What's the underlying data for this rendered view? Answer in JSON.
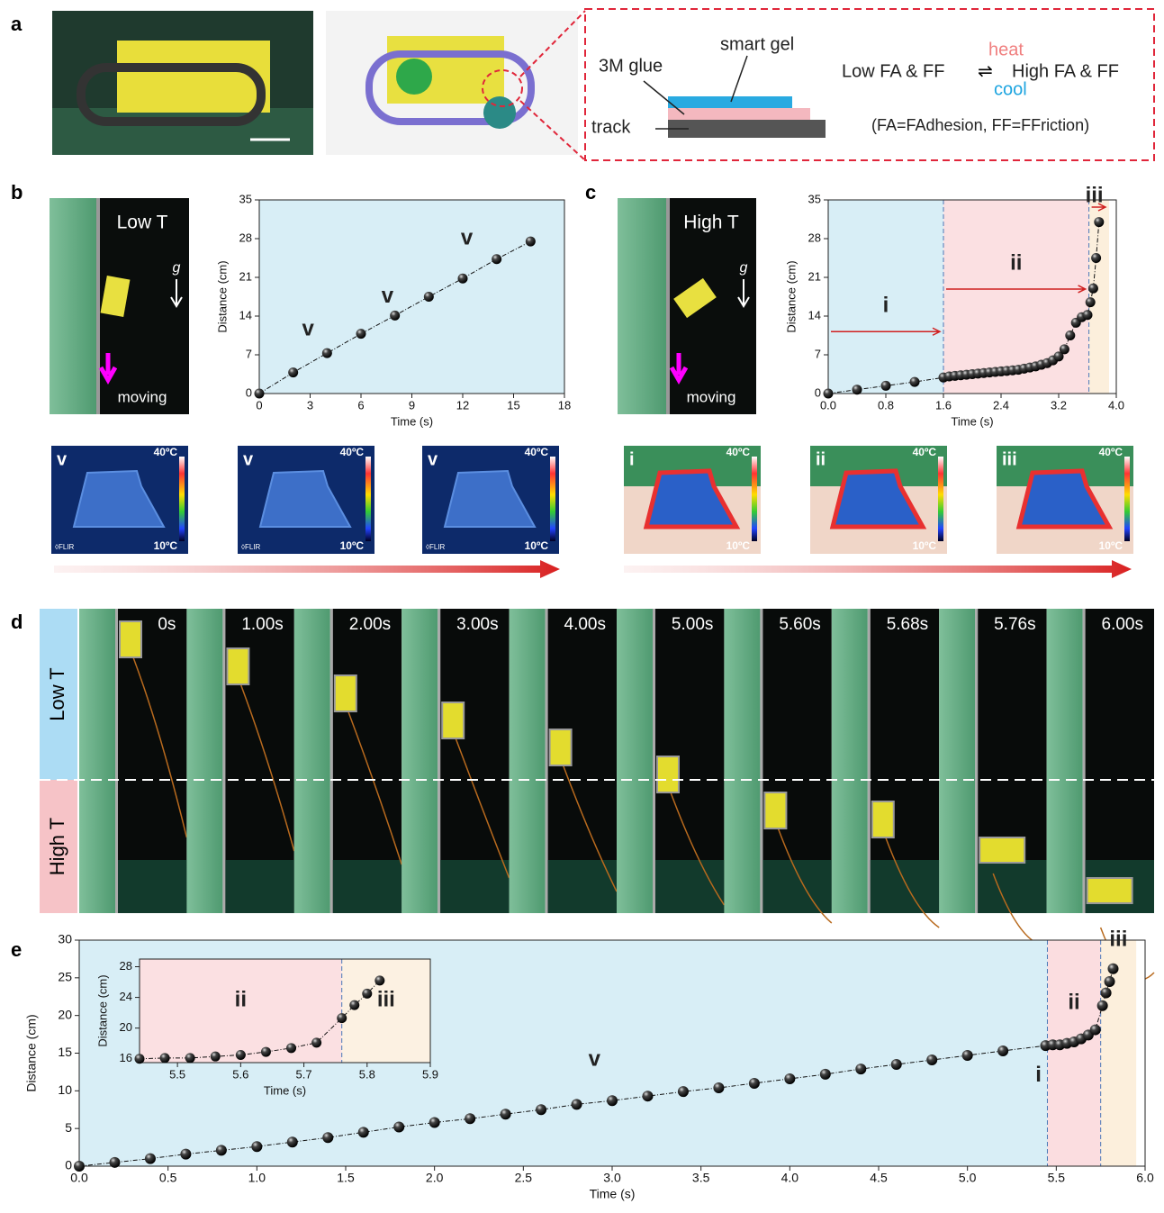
{
  "figure": {
    "panel_labels": [
      "a",
      "b",
      "c",
      "d",
      "e"
    ],
    "schematic": {
      "glue": "3M glue",
      "gel": "smart gel",
      "track": "track",
      "low": "Low FA & FF",
      "heat": "heat",
      "cool": "cool",
      "high": "High FA & FF",
      "legend": "(FA=FAdhesion, FF=FFriction)"
    },
    "photo_b": {
      "label": "Low T",
      "gravity": "g",
      "moving": "moving"
    },
    "photo_c": {
      "label": "High T",
      "gravity": "g",
      "moving": "moving"
    },
    "thermal": [
      {
        "label": "v",
        "max": "40ºC",
        "min": "10ºC",
        "brand": "◊FLIR"
      },
      {
        "label": "v",
        "max": "40ºC",
        "min": "10ºC",
        "brand": "◊FLIR"
      },
      {
        "label": "v",
        "max": "40ºC",
        "min": "10ºC",
        "brand": "◊FLIR"
      },
      {
        "label": "i",
        "max": "40ºC",
        "min": "10ºC"
      },
      {
        "label": "ii",
        "max": "40ºC",
        "min": "10ºC"
      },
      {
        "label": "iii",
        "max": "40ºC",
        "min": "10ºC"
      }
    ],
    "sequence": {
      "zones": [
        "Low T",
        "High T"
      ],
      "times": [
        "0s",
        "1.00s",
        "2.00s",
        "3.00s",
        "4.00s",
        "5.00s",
        "5.60s",
        "5.68s",
        "5.76s",
        "6.00s"
      ]
    }
  },
  "chart_data": [
    {
      "type": "line",
      "xlabel": "Time (s)",
      "ylabel": "Distance (cm)",
      "color": "#111",
      "x": [
        0,
        2,
        4,
        6,
        8,
        10,
        12,
        14,
        16
      ],
      "values": [
        0,
        3.8,
        7.3,
        10.8,
        14.1,
        17.5,
        20.8,
        24.3,
        27.5
      ],
      "xlim": [
        0,
        18
      ],
      "xticks": [
        0,
        3,
        6,
        9,
        12,
        15,
        18
      ],
      "ylim": [
        0,
        35
      ],
      "yticks": [
        0,
        7,
        14,
        21,
        28,
        35
      ],
      "spans": [
        {
          "range": [
            0,
            18
          ],
          "color": "#d8eef6"
        }
      ],
      "annotations": [
        "v",
        "v",
        "v"
      ]
    },
    {
      "type": "line",
      "xlabel": "Time (s)",
      "ylabel": "Distance (cm)",
      "color": "#111",
      "x": [
        0,
        0.4,
        0.8,
        1.2,
        1.6,
        1.68,
        1.76,
        1.84,
        1.92,
        2.0,
        2.08,
        2.16,
        2.24,
        2.32,
        2.4,
        2.48,
        2.56,
        2.64,
        2.72,
        2.8,
        2.88,
        2.96,
        3.04,
        3.12,
        3.2,
        3.28,
        3.36,
        3.44,
        3.52,
        3.6,
        3.64,
        3.68,
        3.72,
        3.76
      ],
      "values": [
        0,
        0.7,
        1.4,
        2.1,
        2.9,
        3.1,
        3.2,
        3.3,
        3.4,
        3.5,
        3.6,
        3.7,
        3.8,
        3.9,
        4.0,
        4.1,
        4.2,
        4.3,
        4.5,
        4.7,
        4.9,
        5.2,
        5.5,
        6.0,
        6.7,
        8.0,
        10.5,
        12.8,
        13.8,
        14.2,
        16.5,
        19.0,
        24.5,
        31.0
      ],
      "xlim": [
        0,
        4.0
      ],
      "xticks": [
        {
          "value": 0,
          "label": "0.0"
        },
        0.8,
        1.6,
        2.4,
        3.2,
        {
          "value": 4,
          "label": "4.0"
        }
      ],
      "ylim": [
        0,
        35
      ],
      "yticks": [
        0,
        7,
        14,
        21,
        28,
        35
      ],
      "spans": [
        {
          "range": [
            0,
            1.6
          ],
          "color": "#d8eef6",
          "label": "i"
        },
        {
          "range": [
            1.6,
            3.62
          ],
          "color": "#fbe0e2",
          "label": "ii"
        },
        {
          "range": [
            3.62,
            3.9
          ],
          "color": "#fcefdc",
          "label": "iii"
        }
      ]
    },
    {
      "type": "line",
      "xlabel": "Time (s)",
      "ylabel": "Distance (cm)",
      "color": "#111",
      "x": [
        0,
        0.2,
        0.4,
        0.6,
        0.8,
        1.0,
        1.2,
        1.4,
        1.6,
        1.8,
        2.0,
        2.2,
        2.4,
        2.6,
        2.8,
        3.0,
        3.2,
        3.4,
        3.6,
        3.8,
        4.0,
        4.2,
        4.4,
        4.6,
        4.8,
        5.0,
        5.2,
        5.44,
        5.48,
        5.52,
        5.56,
        5.6,
        5.64,
        5.68,
        5.72,
        5.76,
        5.78,
        5.8,
        5.82
      ],
      "values": [
        0,
        0.5,
        1.0,
        1.6,
        2.1,
        2.6,
        3.2,
        3.8,
        4.5,
        5.2,
        5.8,
        6.3,
        6.9,
        7.5,
        8.2,
        8.7,
        9.3,
        9.9,
        10.4,
        11.0,
        11.6,
        12.2,
        12.9,
        13.5,
        14.1,
        14.7,
        15.3,
        16.0,
        16.1,
        16.1,
        16.3,
        16.5,
        16.9,
        17.4,
        18.1,
        21.3,
        23.0,
        24.5,
        26.2
      ],
      "xlim": [
        0,
        6.0
      ],
      "xticks": [
        {
          "value": 0,
          "label": "0.0"
        },
        0.5,
        {
          "value": 1,
          "label": "1.0"
        },
        1.5,
        {
          "value": 2,
          "label": "2.0"
        },
        2.5,
        {
          "value": 3,
          "label": "3.0"
        },
        3.5,
        {
          "value": 4,
          "label": "4.0"
        },
        4.5,
        {
          "value": 5,
          "label": "5.0"
        },
        5.5,
        {
          "value": 6,
          "label": "6.0"
        }
      ],
      "ylim": [
        0,
        30
      ],
      "yticks": [
        0,
        5,
        10,
        15,
        20,
        25,
        30
      ],
      "spans": [
        {
          "range": [
            0,
            5.45
          ],
          "color": "#d8eef6",
          "label": "v"
        },
        {
          "range": [
            5.45,
            5.75
          ],
          "color": "#fbdde0",
          "label": "ii"
        },
        {
          "range": [
            5.75,
            5.95
          ],
          "color": "#fcefdc",
          "label": "iii"
        }
      ],
      "annotations": [
        "i"
      ]
    },
    {
      "type": "line",
      "xlabel": "Time (s)",
      "ylabel": "Distance (cm)",
      "color": "#111",
      "x": [
        5.44,
        5.48,
        5.52,
        5.56,
        5.6,
        5.64,
        5.68,
        5.72,
        5.76,
        5.78,
        5.8,
        5.82
      ],
      "values": [
        16.0,
        16.1,
        16.1,
        16.3,
        16.5,
        16.9,
        17.4,
        18.1,
        21.3,
        23.0,
        24.5,
        26.2
      ],
      "xlim": [
        5.44,
        5.9
      ],
      "xticks": [
        5.5,
        5.6,
        5.7,
        5.8,
        5.9
      ],
      "ylim": [
        15.5,
        29
      ],
      "yticks": [
        16,
        20,
        24,
        28
      ],
      "spans": [
        {
          "range": [
            5.44,
            5.76
          ],
          "color": "#fbe0e2",
          "label": "ii"
        },
        {
          "range": [
            5.76,
            5.9
          ],
          "color": "#fcf1e2",
          "label": "iii"
        }
      ]
    }
  ]
}
